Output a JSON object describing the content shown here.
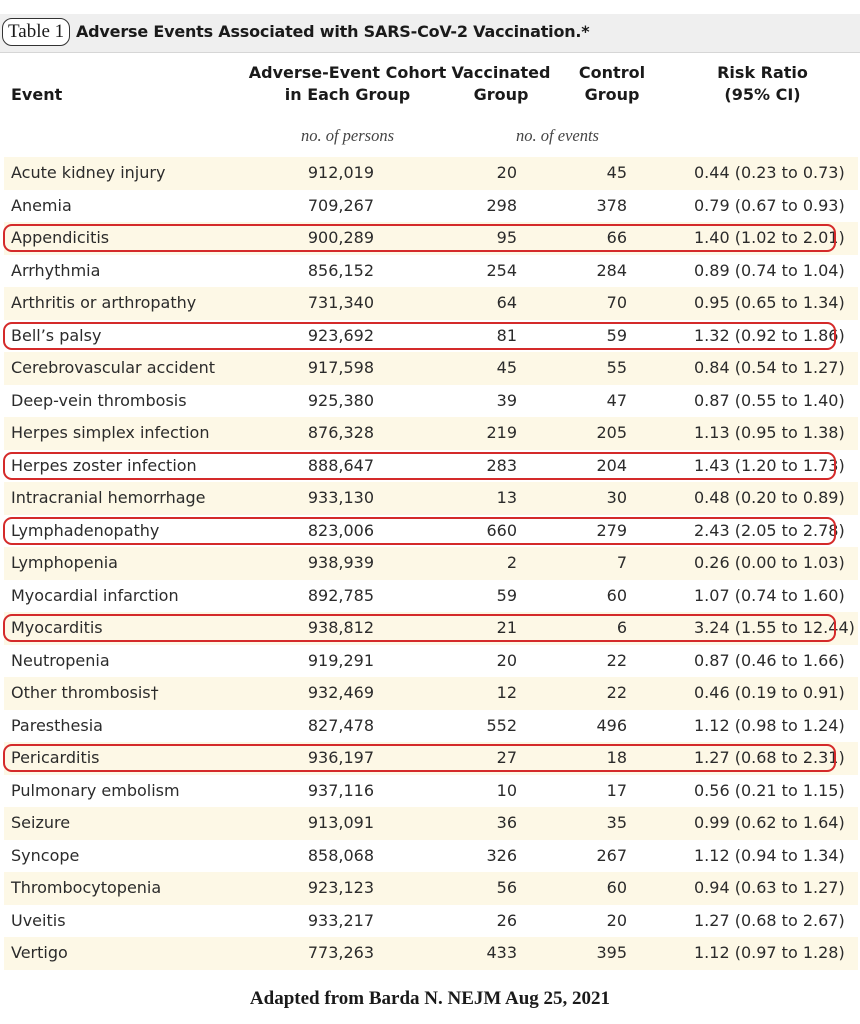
{
  "table_label": "Table 1",
  "title": "Adverse Events Associated with SARS-CoV-2 Vaccination.*",
  "headers": {
    "event": "Event",
    "cohort": [
      "Adverse-Event Cohort",
      "in Each Group"
    ],
    "vaccinated": [
      "Vaccinated",
      "Group"
    ],
    "control": [
      "Control",
      "Group"
    ],
    "risk": [
      "Risk Ratio",
      "(95% CI)"
    ]
  },
  "subheaders": {
    "cohort": "no. of persons",
    "events": "no. of events"
  },
  "rows": [
    {
      "event": "Acute kidney injury",
      "cohort": "912,019",
      "vaccinated": "20",
      "control": "45",
      "risk_ratio": "0.44 (0.23 to 0.73)",
      "highlighted": false
    },
    {
      "event": "Anemia",
      "cohort": "709,267",
      "vaccinated": "298",
      "control": "378",
      "risk_ratio": "0.79 (0.67 to 0.93)",
      "highlighted": false
    },
    {
      "event": "Appendicitis",
      "cohort": "900,289",
      "vaccinated": "95",
      "control": "66",
      "risk_ratio": "1.40 (1.02 to 2.01)",
      "highlighted": true
    },
    {
      "event": "Arrhythmia",
      "cohort": "856,152",
      "vaccinated": "254",
      "control": "284",
      "risk_ratio": "0.89 (0.74 to 1.04)",
      "highlighted": false
    },
    {
      "event": "Arthritis or arthropathy",
      "cohort": "731,340",
      "vaccinated": "64",
      "control": "70",
      "risk_ratio": "0.95 (0.65 to 1.34)",
      "highlighted": false
    },
    {
      "event": "Bell’s palsy",
      "cohort": "923,692",
      "vaccinated": "81",
      "control": "59",
      "risk_ratio": "1.32 (0.92 to 1.86)",
      "highlighted": true
    },
    {
      "event": "Cerebrovascular accident",
      "cohort": "917,598",
      "vaccinated": "45",
      "control": "55",
      "risk_ratio": "0.84 (0.54 to 1.27)",
      "highlighted": false
    },
    {
      "event": "Deep-vein thrombosis",
      "cohort": "925,380",
      "vaccinated": "39",
      "control": "47",
      "risk_ratio": "0.87 (0.55 to 1.40)",
      "highlighted": false
    },
    {
      "event": "Herpes simplex infection",
      "cohort": "876,328",
      "vaccinated": "219",
      "control": "205",
      "risk_ratio": "1.13 (0.95 to 1.38)",
      "highlighted": false
    },
    {
      "event": "Herpes zoster infection",
      "cohort": "888,647",
      "vaccinated": "283",
      "control": "204",
      "risk_ratio": "1.43 (1.20 to 1.73)",
      "highlighted": true
    },
    {
      "event": "Intracranial hemorrhage",
      "cohort": "933,130",
      "vaccinated": "13",
      "control": "30",
      "risk_ratio": "0.48 (0.20 to 0.89)",
      "highlighted": false
    },
    {
      "event": "Lymphadenopathy",
      "cohort": "823,006",
      "vaccinated": "660",
      "control": "279",
      "risk_ratio": "2.43 (2.05 to 2.78)",
      "highlighted": true
    },
    {
      "event": "Lymphopenia",
      "cohort": "938,939",
      "vaccinated": "2",
      "control": "7",
      "risk_ratio": "0.26 (0.00 to 1.03)",
      "highlighted": false
    },
    {
      "event": "Myocardial infarction",
      "cohort": "892,785",
      "vaccinated": "59",
      "control": "60",
      "risk_ratio": "1.07 (0.74 to 1.60)",
      "highlighted": false
    },
    {
      "event": "Myocarditis",
      "cohort": "938,812",
      "vaccinated": "21",
      "control": "6",
      "risk_ratio": "3.24 (1.55 to 12.44)",
      "highlighted": true
    },
    {
      "event": "Neutropenia",
      "cohort": "919,291",
      "vaccinated": "20",
      "control": "22",
      "risk_ratio": "0.87 (0.46 to 1.66)",
      "highlighted": false
    },
    {
      "event": "Other thrombosis†",
      "cohort": "932,469",
      "vaccinated": "12",
      "control": "22",
      "risk_ratio": "0.46 (0.19 to 0.91)",
      "highlighted": false
    },
    {
      "event": "Paresthesia",
      "cohort": "827,478",
      "vaccinated": "552",
      "control": "496",
      "risk_ratio": "1.12 (0.98 to 1.24)",
      "highlighted": false
    },
    {
      "event": "Pericarditis",
      "cohort": "936,197",
      "vaccinated": "27",
      "control": "18",
      "risk_ratio": "1.27 (0.68 to 2.31)",
      "highlighted": true
    },
    {
      "event": "Pulmonary embolism",
      "cohort": "937,116",
      "vaccinated": "10",
      "control": "17",
      "risk_ratio": "0.56 (0.21 to 1.15)",
      "highlighted": false
    },
    {
      "event": "Seizure",
      "cohort": "913,091",
      "vaccinated": "36",
      "control": "35",
      "risk_ratio": "0.99 (0.62 to 1.64)",
      "highlighted": false
    },
    {
      "event": "Syncope",
      "cohort": "858,068",
      "vaccinated": "326",
      "control": "267",
      "risk_ratio": "1.12 (0.94 to 1.34)",
      "highlighted": false
    },
    {
      "event": "Thrombocytopenia",
      "cohort": "923,123",
      "vaccinated": "56",
      "control": "60",
      "risk_ratio": "0.94 (0.63 to 1.27)",
      "highlighted": false
    },
    {
      "event": "Uveitis",
      "cohort": "933,217",
      "vaccinated": "26",
      "control": "20",
      "risk_ratio": "1.27 (0.68 to 2.67)",
      "highlighted": false
    },
    {
      "event": "Vertigo",
      "cohort": "773,263",
      "vaccinated": "433",
      "control": "395",
      "risk_ratio": "1.12 (0.97 to 1.28)",
      "highlighted": false
    }
  ],
  "highlight_color": "#d42a2a",
  "stripe_color": "#fdf8e6",
  "caption": "Adapted from Barda N. NEJM Aug 25, 2021"
}
